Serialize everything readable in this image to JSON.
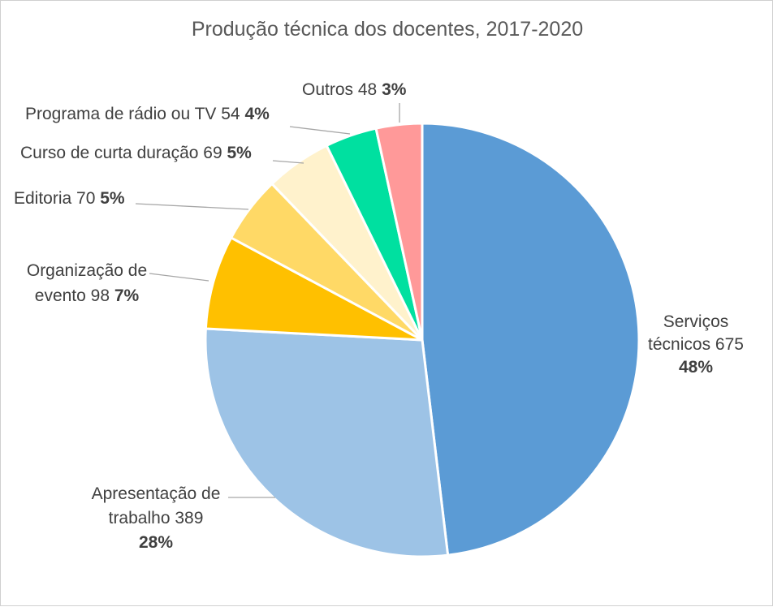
{
  "chart_data": {
    "type": "pie",
    "title": "Produção técnica dos docentes, 2017-2020",
    "slices": [
      {
        "name": "Serviços técnicos",
        "value": 675,
        "percent": "48%",
        "color": "#5b9bd5"
      },
      {
        "name": "Apresentação de trabalho",
        "value": 389,
        "percent": "28%",
        "color": "#9dc3e6"
      },
      {
        "name": "Organização de evento",
        "value": 98,
        "percent": "7%",
        "color": "#ffc000"
      },
      {
        "name": "Editoria",
        "value": 70,
        "percent": "5%",
        "color": "#ffd966"
      },
      {
        "name": "Curso de curta duração",
        "value": 69,
        "percent": "5%",
        "color": "#fff2cc"
      },
      {
        "name": "Programa de rádio ou TV",
        "value": 54,
        "percent": "4%",
        "color": "#00e0a0"
      },
      {
        "name": "Outros",
        "value": 48,
        "percent": "3%",
        "color": "#ff9999"
      }
    ]
  },
  "labels": [
    {
      "lines": [
        "Serviços",
        "técnicos 675"
      ],
      "pct": "48%"
    },
    {
      "lines": [
        "Apresentação de",
        "trabalho 389"
      ],
      "pct": "28%"
    },
    {
      "lines": [
        "Organização de"
      ],
      "tail": "evento 98",
      "pct": "7%"
    },
    {
      "tail": "Editoria 70",
      "pct": "5%"
    },
    {
      "tail": "Curso de curta duração 69",
      "pct": "5%"
    },
    {
      "tail": "Programa de rádio ou TV 54",
      "pct": "4%"
    },
    {
      "tail": "Outros 48",
      "pct": "3%"
    }
  ]
}
